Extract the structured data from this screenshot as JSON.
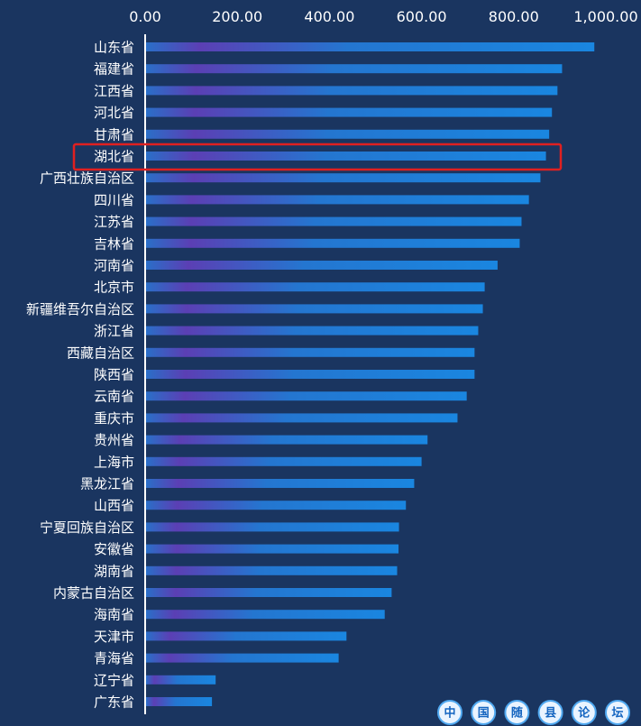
{
  "chart_data": {
    "type": "bar",
    "orientation": "horizontal",
    "title": "",
    "xlabel": "",
    "ylabel": "",
    "xlim": [
      0,
      1000
    ],
    "x_ticks": [
      "0.00",
      "200.00",
      "400.00",
      "600.00",
      "800.00",
      "1,000.00"
    ],
    "grid": false,
    "categories": [
      "山东省",
      "福建省",
      "江西省",
      "河北省",
      "甘肃省",
      "湖北省",
      "广西壮族自治区",
      "四川省",
      "江苏省",
      "吉林省",
      "河南省",
      "北京市",
      "新疆维吾尔自治区",
      "浙江省",
      "西藏自治区",
      "陕西省",
      "云南省",
      "重庆市",
      "贵州省",
      "上海市",
      "黑龙江省",
      "山西省",
      "宁夏回族自治区",
      "安徽省",
      "湖南省",
      "内蒙古自治区",
      "海南省",
      "天津市",
      "青海省",
      "辽宁省",
      "广东省"
    ],
    "values": [
      975,
      905,
      895,
      883,
      877,
      870,
      858,
      833,
      817,
      813,
      765,
      737,
      733,
      723,
      715,
      715,
      698,
      678,
      613,
      600,
      584,
      566,
      551,
      550,
      547,
      535,
      520,
      437,
      420,
      153,
      145
    ],
    "highlighted_category": "湖北省",
    "highlight_color": "#e02020",
    "bar_color": "#1f7fd6",
    "bar_accent_color": "#5a3fb0"
  },
  "watermark": {
    "chars": [
      "中",
      "国",
      "随",
      "县",
      "论",
      "坛"
    ]
  }
}
